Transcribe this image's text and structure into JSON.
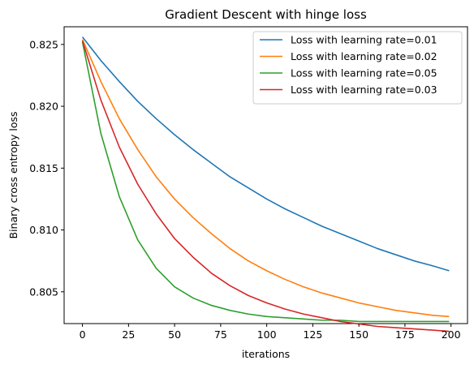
{
  "chart_data": {
    "type": "line",
    "title": "Gradient Descent with hinge loss",
    "xlabel": "iterations",
    "ylabel": "Binary cross entropy loss",
    "xlim": [
      -9.95,
      208.95
    ],
    "ylim": [
      0.80243,
      0.82643
    ],
    "xticks": [
      0,
      25,
      50,
      75,
      100,
      125,
      150,
      175,
      200
    ],
    "yticks": [
      0.805,
      0.81,
      0.815,
      0.82,
      0.825
    ],
    "ytick_labels": [
      "0.805",
      "0.810",
      "0.815",
      "0.820",
      "0.825"
    ],
    "grid": false,
    "legend_position": "top-right",
    "x": [
      0,
      10,
      20,
      30,
      40,
      50,
      60,
      70,
      80,
      90,
      100,
      110,
      120,
      130,
      140,
      150,
      160,
      170,
      180,
      190,
      199
    ],
    "series": [
      {
        "name": "Loss with learning rate=0.01",
        "color": "#1f77b4",
        "values": [
          0.8256,
          0.8237,
          0.822,
          0.8204,
          0.819,
          0.8177,
          0.8165,
          0.8154,
          0.8143,
          0.8134,
          0.8125,
          0.8117,
          0.811,
          0.8103,
          0.8097,
          0.8091,
          0.8085,
          0.808,
          0.8075,
          0.8071,
          0.8067
        ]
      },
      {
        "name": "Loss with learning rate=0.02",
        "color": "#ff7f0e",
        "values": [
          0.8254,
          0.822,
          0.819,
          0.8165,
          0.8143,
          0.8125,
          0.811,
          0.8097,
          0.8085,
          0.8075,
          0.8067,
          0.806,
          0.8054,
          0.8049,
          0.8045,
          0.8041,
          0.8038,
          0.8035,
          0.8033,
          0.8031,
          0.803
        ]
      },
      {
        "name": "Loss with learning rate=0.05",
        "color": "#2ca02c",
        "values": [
          0.8252,
          0.8178,
          0.8127,
          0.8092,
          0.8069,
          0.8054,
          0.8045,
          0.8039,
          0.8035,
          0.8032,
          0.803,
          0.8029,
          0.8028,
          0.8027,
          0.8027,
          0.8026,
          0.8026,
          0.8026,
          0.8026,
          0.8026,
          0.8026
        ]
      },
      {
        "name": "Loss with learning rate=0.03",
        "color": "#d62728",
        "values": [
          0.8253,
          0.8205,
          0.8167,
          0.8137,
          0.8113,
          0.8093,
          0.8078,
          0.8065,
          0.8055,
          0.8047,
          0.8041,
          0.8036,
          0.8032,
          0.8029,
          0.8026,
          0.8024,
          0.8022,
          0.8021,
          0.802,
          0.8019,
          0.8018
        ]
      }
    ]
  }
}
